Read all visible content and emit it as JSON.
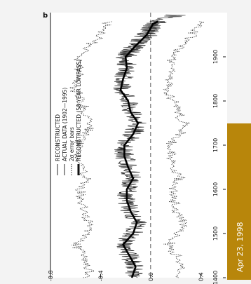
{
  "panel_label": "b",
  "date_badge": {
    "text": "Apr 23, 1998",
    "color": "#b8860b"
  },
  "chart_data": {
    "type": "line",
    "rotation_deg": -90,
    "x_ticks": [
      "1400",
      "1500",
      "1600",
      "1700",
      "1800",
      "1900"
    ],
    "xlim": [
      1400,
      2000
    ],
    "y_ticks": [
      "-0.8",
      "-0.4",
      "0.0",
      "0.4"
    ],
    "ylim": [
      -0.8,
      0.6
    ],
    "grid": false,
    "legend_position": "top-left",
    "legend": [
      {
        "label": "RECONSTRUCTED",
        "style": "thin-solid"
      },
      {
        "label": "ACTUAL DATA (1902—1995)",
        "style": "thin-solid"
      },
      {
        "label": "2σ error bars",
        "style": "dotted"
      },
      {
        "label": "RECONSTRUCTED (50 YEAR LOWPASS)",
        "style": "thick-solid"
      }
    ],
    "series": [
      {
        "style": "lowpass",
        "x": [
          1400,
          1425,
          1450,
          1475,
          1500,
          1525,
          1550,
          1575,
          1600,
          1625,
          1650,
          1675,
          1700,
          1725,
          1750,
          1775,
          1800,
          1825,
          1850,
          1875,
          1900,
          1925,
          1950,
          1975,
          1980
        ],
        "values": [
          -0.15,
          -0.12,
          -0.17,
          -0.22,
          -0.14,
          -0.11,
          -0.16,
          -0.19,
          -0.19,
          -0.14,
          -0.18,
          -0.21,
          -0.21,
          -0.14,
          -0.1,
          -0.16,
          -0.18,
          -0.24,
          -0.22,
          -0.19,
          -0.2,
          -0.12,
          -0.03,
          0.02,
          0.06
        ]
      }
    ]
  }
}
